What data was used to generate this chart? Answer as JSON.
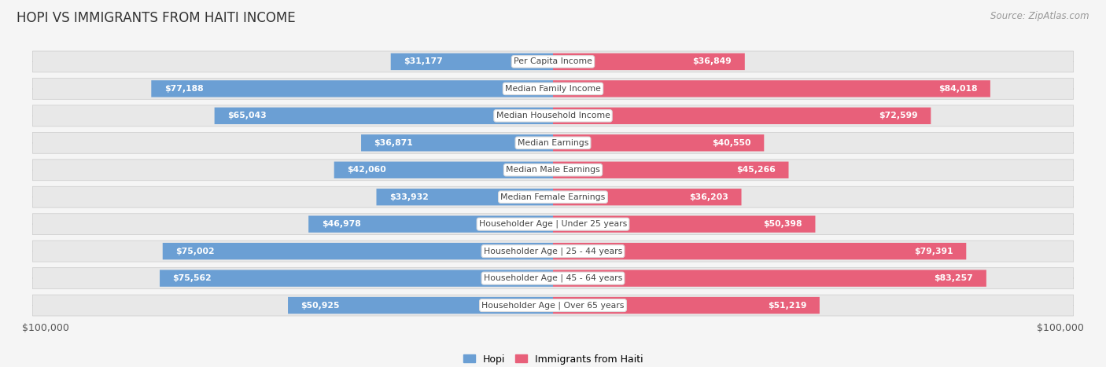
{
  "title": "HOPI VS IMMIGRANTS FROM HAITI INCOME",
  "source": "Source: ZipAtlas.com",
  "categories": [
    "Per Capita Income",
    "Median Family Income",
    "Median Household Income",
    "Median Earnings",
    "Median Male Earnings",
    "Median Female Earnings",
    "Householder Age | Under 25 years",
    "Householder Age | 25 - 44 years",
    "Householder Age | 45 - 64 years",
    "Householder Age | Over 65 years"
  ],
  "hopi_values": [
    31177,
    77188,
    65043,
    36871,
    42060,
    33932,
    46978,
    75002,
    75562,
    50925
  ],
  "haiti_values": [
    36849,
    84018,
    72599,
    40550,
    45266,
    36203,
    50398,
    79391,
    83257,
    51219
  ],
  "hopi_labels": [
    "$31,177",
    "$77,188",
    "$65,043",
    "$36,871",
    "$42,060",
    "$33,932",
    "$46,978",
    "$75,002",
    "$75,562",
    "$50,925"
  ],
  "haiti_labels": [
    "$36,849",
    "$84,018",
    "$72,599",
    "$40,550",
    "$45,266",
    "$36,203",
    "$50,398",
    "$79,391",
    "$83,257",
    "$51,219"
  ],
  "max_value": 100000,
  "hopi_color_dark": "#6b9fd4",
  "hopi_color_light": "#b8cfe8",
  "haiti_color_dark": "#e8607a",
  "haiti_color_light": "#f4b8c8",
  "row_bg_color": "#ebebeb",
  "row_pill_color": "#f5f5f5",
  "background_color": "#f5f5f5",
  "bar_height": 0.62,
  "legend_hopi": "Hopi",
  "legend_haiti": "Immigrants from Haiti",
  "xlabel_left": "$100,000",
  "xlabel_right": "$100,000",
  "inside_label_threshold": 0.3
}
